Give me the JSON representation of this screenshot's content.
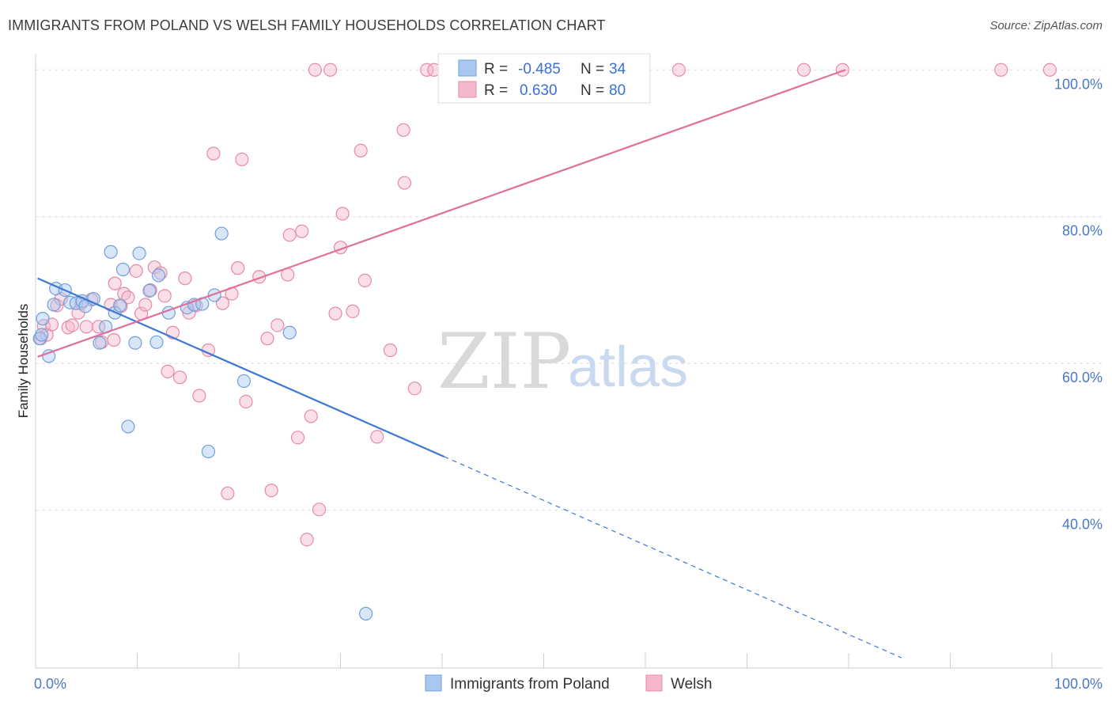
{
  "header": {
    "title": "IMMIGRANTS FROM POLAND VS WELSH FAMILY HOUSEHOLDS CORRELATION CHART",
    "source": "Source: ZipAtlas.com"
  },
  "watermark": {
    "zip": "ZIP",
    "atlas": "atlas"
  },
  "legend_box": {
    "rows": [
      {
        "r_label": "R =",
        "r_value": "-0.485",
        "n_label": "N =",
        "n_value": "34",
        "color": "#a9c8f0",
        "stroke": "#6f9fdc"
      },
      {
        "r_label": "R =",
        "r_value": "0.630",
        "n_label": "N =",
        "n_value": "80",
        "color": "#f5b8cb",
        "stroke": "#e68aa8"
      }
    ]
  },
  "bottom_legend": [
    {
      "label": "Immigrants from Poland",
      "color": "#a9c8f0",
      "stroke": "#6f9fdc"
    },
    {
      "label": "Welsh",
      "color": "#f5b8cb",
      "stroke": "#e68aa8"
    }
  ],
  "chart_data": {
    "type": "scatter",
    "title": "IMMIGRANTS FROM POLAND VS WELSH FAMILY HOUSEHOLDS CORRELATION CHART",
    "xlabel": "",
    "ylabel": "Family Households",
    "xlim": [
      0,
      100
    ],
    "ylim": [
      18.5,
      101
    ],
    "x_tick_labels": [
      {
        "value": 0,
        "label": "0.0%"
      },
      {
        "value": 100,
        "label": "100.0%"
      }
    ],
    "y_tick_labels": [
      {
        "value": 40,
        "label": "40.0%"
      },
      {
        "value": 60,
        "label": "60.0%"
      },
      {
        "value": 80,
        "label": "80.0%"
      },
      {
        "value": 100,
        "label": "100.0%"
      }
    ],
    "gridlines": [
      40,
      60,
      80,
      100
    ],
    "grid": true,
    "series": [
      {
        "name": "Immigrants from Poland",
        "color": "#a9c8f0",
        "stroke": "#6f9fdc",
        "line_color": "#3a78d4",
        "trend": {
          "x1": 0.2,
          "y1": 71.6,
          "x2": 40.2,
          "y2": 47.3,
          "dash_to_x": 85.2,
          "dash_to_y": 19.9
        },
        "points": [
          {
            "x": 0.4,
            "y": 63.4
          },
          {
            "x": 0.7,
            "y": 66.1
          },
          {
            "x": 1.3,
            "y": 61.0
          },
          {
            "x": 2.0,
            "y": 70.2
          },
          {
            "x": 2.9,
            "y": 70.0
          },
          {
            "x": 3.4,
            "y": 68.3
          },
          {
            "x": 4.0,
            "y": 68.2
          },
          {
            "x": 4.6,
            "y": 68.5
          },
          {
            "x": 4.9,
            "y": 67.8
          },
          {
            "x": 5.7,
            "y": 68.8
          },
          {
            "x": 6.3,
            "y": 62.8
          },
          {
            "x": 6.9,
            "y": 65.0
          },
          {
            "x": 7.4,
            "y": 75.2
          },
          {
            "x": 7.8,
            "y": 66.9
          },
          {
            "x": 8.3,
            "y": 67.9
          },
          {
            "x": 8.6,
            "y": 72.8
          },
          {
            "x": 9.1,
            "y": 51.4
          },
          {
            "x": 9.8,
            "y": 62.8
          },
          {
            "x": 10.2,
            "y": 75.0
          },
          {
            "x": 11.2,
            "y": 69.9
          },
          {
            "x": 11.9,
            "y": 62.9
          },
          {
            "x": 12.1,
            "y": 72.0
          },
          {
            "x": 13.1,
            "y": 66.9
          },
          {
            "x": 14.9,
            "y": 67.6
          },
          {
            "x": 15.6,
            "y": 68.0
          },
          {
            "x": 16.4,
            "y": 68.1
          },
          {
            "x": 17.0,
            "y": 48.0
          },
          {
            "x": 17.6,
            "y": 69.3
          },
          {
            "x": 18.3,
            "y": 77.7
          },
          {
            "x": 20.5,
            "y": 57.6
          },
          {
            "x": 25.0,
            "y": 64.2
          },
          {
            "x": 32.5,
            "y": 25.9
          },
          {
            "x": 0.6,
            "y": 63.9
          },
          {
            "x": 1.8,
            "y": 68.0
          }
        ]
      },
      {
        "name": "Welsh",
        "color": "#f5b8cb",
        "stroke": "#e68aa8",
        "line_color": "#e0709a",
        "trend": {
          "x1": 0.2,
          "y1": 60.9,
          "x2": 79.7,
          "y2": 100.0
        },
        "points": [
          {
            "x": 0.5,
            "y": 63.4
          },
          {
            "x": 0.8,
            "y": 65.1
          },
          {
            "x": 1.1,
            "y": 63.9
          },
          {
            "x": 1.6,
            "y": 65.3
          },
          {
            "x": 2.1,
            "y": 67.9
          },
          {
            "x": 2.5,
            "y": 68.8
          },
          {
            "x": 3.2,
            "y": 64.9
          },
          {
            "x": 3.6,
            "y": 65.2
          },
          {
            "x": 4.2,
            "y": 66.9
          },
          {
            "x": 4.5,
            "y": 68.2
          },
          {
            "x": 5.0,
            "y": 65.0
          },
          {
            "x": 5.5,
            "y": 68.7
          },
          {
            "x": 6.2,
            "y": 65.0
          },
          {
            "x": 6.5,
            "y": 62.9
          },
          {
            "x": 7.4,
            "y": 68.0
          },
          {
            "x": 7.7,
            "y": 63.2
          },
          {
            "x": 7.8,
            "y": 70.9
          },
          {
            "x": 8.4,
            "y": 67.8
          },
          {
            "x": 8.7,
            "y": 69.5
          },
          {
            "x": 9.1,
            "y": 69.0
          },
          {
            "x": 9.9,
            "y": 72.6
          },
          {
            "x": 10.4,
            "y": 66.8
          },
          {
            "x": 10.8,
            "y": 68.0
          },
          {
            "x": 11.3,
            "y": 70.0
          },
          {
            "x": 11.7,
            "y": 73.1
          },
          {
            "x": 12.3,
            "y": 72.3
          },
          {
            "x": 12.7,
            "y": 69.2
          },
          {
            "x": 13.0,
            "y": 58.9
          },
          {
            "x": 13.5,
            "y": 64.2
          },
          {
            "x": 14.2,
            "y": 58.1
          },
          {
            "x": 14.7,
            "y": 71.6
          },
          {
            "x": 15.1,
            "y": 66.9
          },
          {
            "x": 15.8,
            "y": 67.9
          },
          {
            "x": 16.1,
            "y": 55.6
          },
          {
            "x": 17.0,
            "y": 61.8
          },
          {
            "x": 17.5,
            "y": 88.6
          },
          {
            "x": 18.4,
            "y": 68.2
          },
          {
            "x": 18.9,
            "y": 42.3
          },
          {
            "x": 19.3,
            "y": 69.5
          },
          {
            "x": 19.9,
            "y": 73.0
          },
          {
            "x": 20.3,
            "y": 87.8
          },
          {
            "x": 20.7,
            "y": 54.8
          },
          {
            "x": 22.0,
            "y": 71.8
          },
          {
            "x": 22.8,
            "y": 63.4
          },
          {
            "x": 23.2,
            "y": 42.7
          },
          {
            "x": 23.8,
            "y": 65.2
          },
          {
            "x": 24.8,
            "y": 72.1
          },
          {
            "x": 25.0,
            "y": 77.5
          },
          {
            "x": 25.8,
            "y": 49.9
          },
          {
            "x": 26.2,
            "y": 78.0
          },
          {
            "x": 26.7,
            "y": 36.0
          },
          {
            "x": 27.1,
            "y": 52.8
          },
          {
            "x": 27.5,
            "y": 100.0
          },
          {
            "x": 27.9,
            "y": 40.1
          },
          {
            "x": 29.0,
            "y": 100.0
          },
          {
            "x": 29.5,
            "y": 66.8
          },
          {
            "x": 30.0,
            "y": 75.8
          },
          {
            "x": 30.2,
            "y": 80.4
          },
          {
            "x": 31.2,
            "y": 67.1
          },
          {
            "x": 32.0,
            "y": 89.0
          },
          {
            "x": 32.4,
            "y": 71.3
          },
          {
            "x": 33.6,
            "y": 50.0
          },
          {
            "x": 34.9,
            "y": 61.8
          },
          {
            "x": 36.2,
            "y": 91.8
          },
          {
            "x": 36.3,
            "y": 84.6
          },
          {
            "x": 37.3,
            "y": 56.6
          },
          {
            "x": 38.5,
            "y": 100.0
          },
          {
            "x": 39.2,
            "y": 100.0
          },
          {
            "x": 41.7,
            "y": 100.0
          },
          {
            "x": 43.1,
            "y": 100.0
          },
          {
            "x": 44.1,
            "y": 100.0
          },
          {
            "x": 48.6,
            "y": 100.0
          },
          {
            "x": 52.8,
            "y": 100.0
          },
          {
            "x": 57.2,
            "y": 100.0
          },
          {
            "x": 57.7,
            "y": 100.0
          },
          {
            "x": 63.3,
            "y": 100.0
          },
          {
            "x": 75.6,
            "y": 100.0
          },
          {
            "x": 79.4,
            "y": 100.0
          },
          {
            "x": 95.0,
            "y": 100.0
          },
          {
            "x": 99.8,
            "y": 100.0
          }
        ]
      }
    ]
  }
}
